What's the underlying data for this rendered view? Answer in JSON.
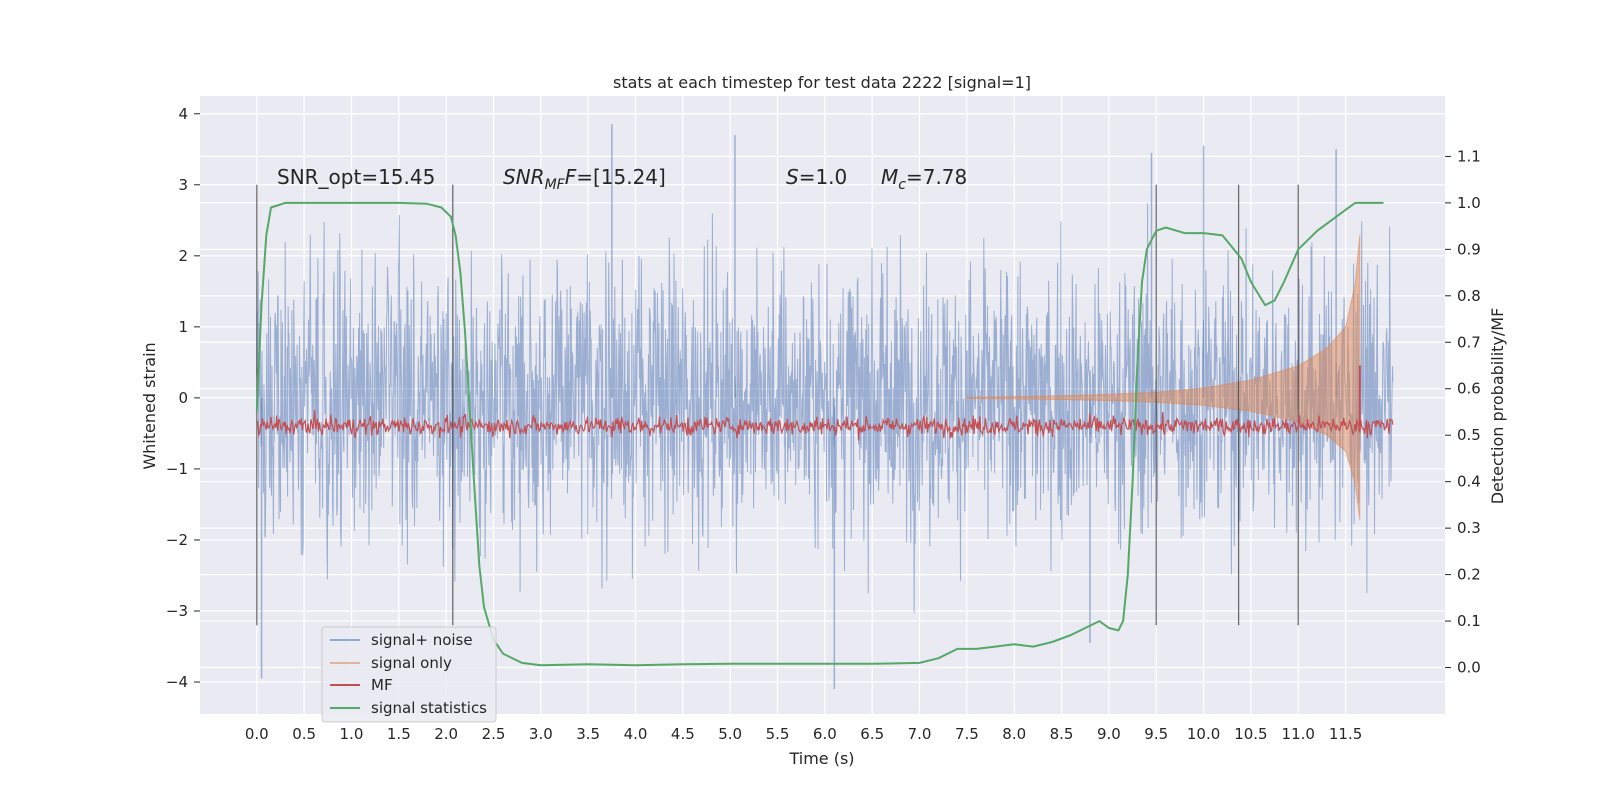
{
  "chart_data": {
    "type": "line",
    "title": "stats at each timestep for test data 2222 [signal=1]",
    "xlabel": "Time (s)",
    "ylabel": "Whitened strain",
    "y2label": "Detection probability/MF",
    "xlim": [
      -0.6,
      12.55
    ],
    "ylim": [
      -4.45,
      4.25
    ],
    "y2lim": [
      -0.1,
      1.23
    ],
    "xticks": [
      0.0,
      0.5,
      1.0,
      1.5,
      2.0,
      2.5,
      3.0,
      3.5,
      4.0,
      4.5,
      5.0,
      5.5,
      6.0,
      6.5,
      7.0,
      7.5,
      8.0,
      8.5,
      9.0,
      9.5,
      10.0,
      10.5,
      11.0,
      11.5
    ],
    "xtick_labels": [
      "0.0",
      "0.5",
      "1.0",
      "1.5",
      "2.0",
      "2.5",
      "3.0",
      "3.5",
      "4.0",
      "4.5",
      "5.0",
      "5.5",
      "6.0",
      "6.5",
      "7.0",
      "7.5",
      "8.0",
      "8.5",
      "9.0",
      "9.5",
      "10.0",
      "10.5",
      "11.0",
      "11.5"
    ],
    "yticks": [
      4,
      3,
      2,
      1,
      0,
      -1,
      -2,
      -3,
      -4
    ],
    "ytick_labels": [
      "4",
      "3",
      "2",
      "1",
      "0",
      "−1",
      "−2",
      "−3",
      "−4"
    ],
    "y2ticks": [
      1.1,
      1.0,
      0.9,
      0.8,
      0.7,
      0.6,
      0.5,
      0.4,
      0.3,
      0.2,
      0.1,
      0.0
    ],
    "y2tick_labels": [
      "1.1",
      "1.0",
      "0.9",
      "0.8",
      "0.7",
      "0.6",
      "0.5",
      "0.4",
      "0.3",
      "0.2",
      "0.1",
      "0.0"
    ],
    "grid": true,
    "legend_position": "lower-left",
    "annotations": {
      "snr_opt": "SNR_opt=15.45",
      "snr_mf_main": "SNR",
      "snr_mf_sub": "MF",
      "snr_mf_value": "=[15.24]",
      "s_symbol": "S",
      "s_value": "=1.0",
      "mc_symbol": "M",
      "mc_sub": "c",
      "mc_value": "=7.78"
    },
    "vertical_markers_x": [
      0.0,
      2.07,
      9.5,
      10.37,
      11.0
    ],
    "vertical_markers_range": [
      -3.2,
      3.0
    ],
    "series": [
      {
        "name": "signal+ noise",
        "axis": "left",
        "color": "#4c72b0",
        "style": "dense-noise",
        "x_range": [
          0.0,
          12.0
        ],
        "amplitude_std": 1.0,
        "extremes": [
          {
            "x": 0.05,
            "y": -3.95
          },
          {
            "x": 3.75,
            "y": 3.85
          },
          {
            "x": 5.05,
            "y": 3.7
          },
          {
            "x": 6.1,
            "y": -4.1
          },
          {
            "x": 9.45,
            "y": 3.45
          },
          {
            "x": 10.0,
            "y": 3.55
          },
          {
            "x": 11.4,
            "y": 3.5
          },
          {
            "x": 8.8,
            "y": -3.45
          }
        ]
      },
      {
        "name": "signal only",
        "axis": "left",
        "color": "#dd8452",
        "style": "chirp-envelope",
        "x_range": [
          7.5,
          11.7
        ],
        "envelope": [
          [
            7.5,
            0.01
          ],
          [
            8.0,
            0.02
          ],
          [
            8.5,
            0.03
          ],
          [
            9.0,
            0.05
          ],
          [
            9.5,
            0.08
          ],
          [
            10.0,
            0.14
          ],
          [
            10.5,
            0.25
          ],
          [
            11.0,
            0.45
          ],
          [
            11.3,
            0.7
          ],
          [
            11.5,
            1.0
          ],
          [
            11.6,
            1.6
          ],
          [
            11.65,
            2.3
          ]
        ]
      },
      {
        "name": "MF",
        "axis": "right",
        "color": "#c44e52",
        "baseline": 0.52,
        "noise": 0.01,
        "spikes": [
          {
            "x": 11.65,
            "y": 0.65
          }
        ]
      },
      {
        "name": "signal statistics",
        "axis": "right",
        "color": "#55a868",
        "x": [
          0.0,
          0.05,
          0.1,
          0.15,
          0.3,
          0.5,
          1.0,
          1.5,
          1.8,
          1.95,
          2.05,
          2.1,
          2.15,
          2.2,
          2.25,
          2.3,
          2.35,
          2.4,
          2.5,
          2.6,
          2.8,
          3.0,
          3.5,
          4.0,
          4.5,
          5.0,
          5.5,
          6.0,
          6.5,
          7.0,
          7.2,
          7.4,
          7.6,
          7.8,
          8.0,
          8.2,
          8.4,
          8.6,
          8.75,
          8.9,
          9.0,
          9.1,
          9.15,
          9.2,
          9.25,
          9.3,
          9.35,
          9.4,
          9.5,
          9.6,
          9.8,
          10.0,
          10.2,
          10.4,
          10.5,
          10.65,
          10.75,
          10.85,
          11.0,
          11.2,
          11.5,
          11.6,
          11.9
        ],
        "y": [
          0.55,
          0.78,
          0.93,
          0.99,
          1.0,
          1.0,
          1.0,
          1.0,
          0.998,
          0.99,
          0.97,
          0.93,
          0.85,
          0.72,
          0.55,
          0.38,
          0.22,
          0.13,
          0.06,
          0.03,
          0.01,
          0.005,
          0.007,
          0.005,
          0.007,
          0.008,
          0.008,
          0.008,
          0.008,
          0.01,
          0.02,
          0.04,
          0.04,
          0.045,
          0.05,
          0.045,
          0.055,
          0.07,
          0.085,
          0.1,
          0.085,
          0.08,
          0.1,
          0.2,
          0.4,
          0.65,
          0.83,
          0.9,
          0.94,
          0.947,
          0.935,
          0.935,
          0.93,
          0.88,
          0.83,
          0.78,
          0.79,
          0.83,
          0.9,
          0.94,
          0.985,
          1.0,
          1.0
        ]
      }
    ]
  }
}
